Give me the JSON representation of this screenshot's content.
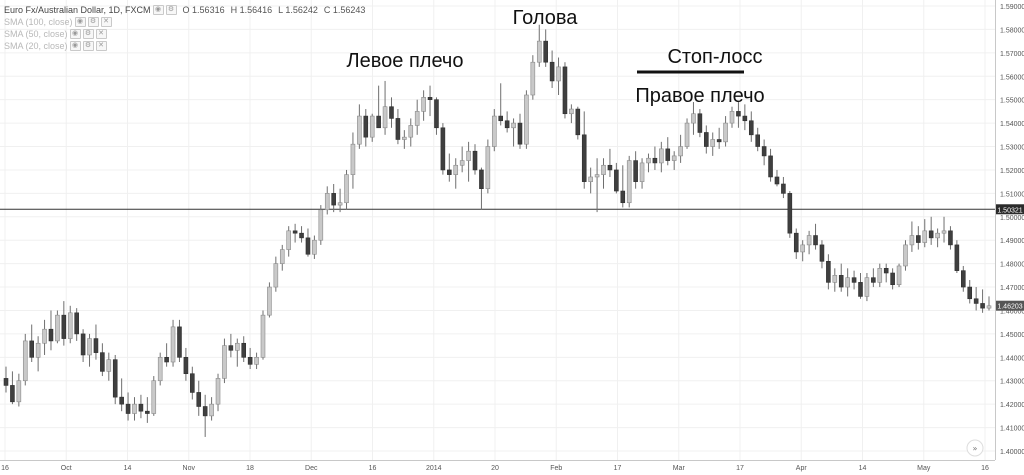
{
  "legend": {
    "symbol": "Euro Fx/Australian Dollar, 1D, FXCM",
    "open": "O 1.56316",
    "high": "H 1.56416",
    "low": "L 1.56242",
    "close": "C 1.56243",
    "indicators": [
      {
        "label": "SMA (100, close)"
      },
      {
        "label": "SMA (50, close)"
      },
      {
        "label": "SMA (20, close)"
      }
    ]
  },
  "chart_data": {
    "type": "candlestick",
    "ylim": [
      1.4,
      1.59
    ],
    "y_ticks": [
      "1.59000",
      "1.58000",
      "1.57000",
      "1.56000",
      "1.55000",
      "1.54000",
      "1.53000",
      "1.52000",
      "1.51000",
      "1.50000",
      "1.49000",
      "1.48000",
      "1.47000",
      "1.46000",
      "1.45000",
      "1.44000",
      "1.43000",
      "1.42000",
      "1.41000",
      "1.40000"
    ],
    "x_labels": [
      "16",
      "Oct",
      "14",
      "Nov",
      "18",
      "Dec",
      "16",
      "2014",
      "20",
      "Feb",
      "17",
      "Mar",
      "17",
      "Apr",
      "14",
      "May",
      "16"
    ],
    "support_line": {
      "value": 1.50321,
      "label": "1.50321"
    },
    "last_price": {
      "value": 1.46203,
      "label": "1.46203"
    },
    "annotations": {
      "head": "Голова",
      "left_shoulder": "Левое плечо",
      "right_shoulder": "Правое плечо",
      "stop_loss": "Стоп-лосс"
    },
    "candles": [
      [
        1.431,
        1.436,
        1.425,
        1.428
      ],
      [
        1.428,
        1.434,
        1.42,
        1.421
      ],
      [
        1.421,
        1.433,
        1.419,
        1.43
      ],
      [
        1.43,
        1.45,
        1.428,
        1.447
      ],
      [
        1.447,
        1.454,
        1.438,
        1.44
      ],
      [
        1.44,
        1.449,
        1.434,
        1.446
      ],
      [
        1.446,
        1.456,
        1.441,
        1.452
      ],
      [
        1.452,
        1.46,
        1.443,
        1.447
      ],
      [
        1.447,
        1.46,
        1.446,
        1.458
      ],
      [
        1.458,
        1.464,
        1.445,
        1.448
      ],
      [
        1.448,
        1.462,
        1.446,
        1.459
      ],
      [
        1.459,
        1.461,
        1.447,
        1.45
      ],
      [
        1.45,
        1.452,
        1.438,
        1.441
      ],
      [
        1.441,
        1.45,
        1.436,
        1.448
      ],
      [
        1.448,
        1.454,
        1.439,
        1.442
      ],
      [
        1.442,
        1.446,
        1.432,
        1.434
      ],
      [
        1.434,
        1.442,
        1.43,
        1.439
      ],
      [
        1.439,
        1.441,
        1.42,
        1.423
      ],
      [
        1.423,
        1.431,
        1.417,
        1.42
      ],
      [
        1.42,
        1.425,
        1.413,
        1.416
      ],
      [
        1.416,
        1.423,
        1.413,
        1.42
      ],
      [
        1.42,
        1.424,
        1.414,
        1.417
      ],
      [
        1.417,
        1.423,
        1.412,
        1.416
      ],
      [
        1.416,
        1.432,
        1.415,
        1.43
      ],
      [
        1.43,
        1.442,
        1.428,
        1.44
      ],
      [
        1.44,
        1.446,
        1.436,
        1.438
      ],
      [
        1.438,
        1.456,
        1.436,
        1.453
      ],
      [
        1.453,
        1.456,
        1.438,
        1.44
      ],
      [
        1.44,
        1.444,
        1.43,
        1.433
      ],
      [
        1.433,
        1.436,
        1.422,
        1.425
      ],
      [
        1.425,
        1.43,
        1.415,
        1.419
      ],
      [
        1.419,
        1.424,
        1.406,
        1.415
      ],
      [
        1.415,
        1.423,
        1.413,
        1.42
      ],
      [
        1.42,
        1.433,
        1.417,
        1.431
      ],
      [
        1.431,
        1.448,
        1.429,
        1.445
      ],
      [
        1.445,
        1.45,
        1.44,
        1.443
      ],
      [
        1.443,
        1.448,
        1.436,
        1.446
      ],
      [
        1.446,
        1.449,
        1.438,
        1.44
      ],
      [
        1.44,
        1.444,
        1.435,
        1.437
      ],
      [
        1.437,
        1.442,
        1.435,
        1.44
      ],
      [
        1.44,
        1.46,
        1.439,
        1.458
      ],
      [
        1.458,
        1.472,
        1.457,
        1.47
      ],
      [
        1.47,
        1.483,
        1.468,
        1.48
      ],
      [
        1.48,
        1.488,
        1.477,
        1.486
      ],
      [
        1.486,
        1.496,
        1.483,
        1.494
      ],
      [
        1.494,
        1.497,
        1.489,
        1.493
      ],
      [
        1.493,
        1.496,
        1.489,
        1.491
      ],
      [
        1.491,
        1.495,
        1.483,
        1.484
      ],
      [
        1.484,
        1.492,
        1.482,
        1.49
      ],
      [
        1.49,
        1.505,
        1.488,
        1.503
      ],
      [
        1.503,
        1.513,
        1.501,
        1.51
      ],
      [
        1.51,
        1.514,
        1.502,
        1.505
      ],
      [
        1.505,
        1.512,
        1.502,
        1.506
      ],
      [
        1.506,
        1.52,
        1.503,
        1.518
      ],
      [
        1.518,
        1.536,
        1.512,
        1.531
      ],
      [
        1.531,
        1.548,
        1.529,
        1.543
      ],
      [
        1.543,
        1.546,
        1.53,
        1.534
      ],
      [
        1.534,
        1.544,
        1.532,
        1.543
      ],
      [
        1.543,
        1.556,
        1.538,
        1.538
      ],
      [
        1.538,
        1.558,
        1.535,
        1.547
      ],
      [
        1.547,
        1.551,
        1.538,
        1.542
      ],
      [
        1.542,
        1.546,
        1.531,
        1.533
      ],
      [
        1.533,
        1.537,
        1.529,
        1.534
      ],
      [
        1.534,
        1.542,
        1.53,
        1.539
      ],
      [
        1.539,
        1.55,
        1.535,
        1.545
      ],
      [
        1.545,
        1.554,
        1.541,
        1.551
      ],
      [
        1.551,
        1.556,
        1.543,
        1.55
      ],
      [
        1.55,
        1.551,
        1.535,
        1.538
      ],
      [
        1.538,
        1.54,
        1.518,
        1.52
      ],
      [
        1.52,
        1.527,
        1.515,
        1.518
      ],
      [
        1.518,
        1.525,
        1.512,
        1.522
      ],
      [
        1.522,
        1.53,
        1.519,
        1.524
      ],
      [
        1.524,
        1.532,
        1.515,
        1.528
      ],
      [
        1.528,
        1.531,
        1.518,
        1.52
      ],
      [
        1.52,
        1.521,
        1.503,
        1.512
      ],
      [
        1.512,
        1.533,
        1.51,
        1.53
      ],
      [
        1.53,
        1.546,
        1.528,
        1.543
      ],
      [
        1.543,
        1.557,
        1.539,
        1.541
      ],
      [
        1.541,
        1.545,
        1.536,
        1.538
      ],
      [
        1.538,
        1.542,
        1.53,
        1.54
      ],
      [
        1.54,
        1.544,
        1.529,
        1.531
      ],
      [
        1.531,
        1.554,
        1.529,
        1.552
      ],
      [
        1.552,
        1.569,
        1.55,
        1.566
      ],
      [
        1.566,
        1.582,
        1.564,
        1.575
      ],
      [
        1.575,
        1.58,
        1.564,
        1.566
      ],
      [
        1.566,
        1.571,
        1.555,
        1.558
      ],
      [
        1.558,
        1.568,
        1.552,
        1.564
      ],
      [
        1.564,
        1.566,
        1.542,
        1.544
      ],
      [
        1.544,
        1.548,
        1.54,
        1.546
      ],
      [
        1.546,
        1.547,
        1.533,
        1.535
      ],
      [
        1.535,
        1.545,
        1.512,
        1.515
      ],
      [
        1.515,
        1.521,
        1.51,
        1.517
      ],
      [
        1.517,
        1.525,
        1.502,
        1.518
      ],
      [
        1.518,
        1.525,
        1.512,
        1.522
      ],
      [
        1.522,
        1.529,
        1.517,
        1.52
      ],
      [
        1.52,
        1.523,
        1.51,
        1.511
      ],
      [
        1.511,
        1.522,
        1.504,
        1.506
      ],
      [
        1.506,
        1.526,
        1.504,
        1.524
      ],
      [
        1.524,
        1.528,
        1.512,
        1.515
      ],
      [
        1.515,
        1.525,
        1.512,
        1.523
      ],
      [
        1.523,
        1.527,
        1.519,
        1.525
      ],
      [
        1.525,
        1.53,
        1.52,
        1.523
      ],
      [
        1.523,
        1.532,
        1.519,
        1.529
      ],
      [
        1.529,
        1.534,
        1.522,
        1.524
      ],
      [
        1.524,
        1.528,
        1.52,
        1.526
      ],
      [
        1.526,
        1.535,
        1.523,
        1.53
      ],
      [
        1.53,
        1.542,
        1.529,
        1.54
      ],
      [
        1.54,
        1.549,
        1.535,
        1.544
      ],
      [
        1.544,
        1.546,
        1.534,
        1.536
      ],
      [
        1.536,
        1.539,
        1.527,
        1.53
      ],
      [
        1.53,
        1.536,
        1.526,
        1.533
      ],
      [
        1.533,
        1.538,
        1.529,
        1.532
      ],
      [
        1.532,
        1.543,
        1.53,
        1.54
      ],
      [
        1.54,
        1.547,
        1.538,
        1.545
      ],
      [
        1.545,
        1.549,
        1.538,
        1.543
      ],
      [
        1.543,
        1.548,
        1.537,
        1.541
      ],
      [
        1.541,
        1.545,
        1.532,
        1.535
      ],
      [
        1.535,
        1.538,
        1.528,
        1.53
      ],
      [
        1.53,
        1.533,
        1.522,
        1.526
      ],
      [
        1.526,
        1.529,
        1.515,
        1.517
      ],
      [
        1.517,
        1.52,
        1.513,
        1.514
      ],
      [
        1.514,
        1.517,
        1.508,
        1.51
      ],
      [
        1.51,
        1.511,
        1.491,
        1.493
      ],
      [
        1.493,
        1.495,
        1.482,
        1.485
      ],
      [
        1.485,
        1.49,
        1.481,
        1.488
      ],
      [
        1.488,
        1.494,
        1.484,
        1.492
      ],
      [
        1.492,
        1.497,
        1.486,
        1.488
      ],
      [
        1.488,
        1.49,
        1.478,
        1.481
      ],
      [
        1.481,
        1.484,
        1.469,
        1.472
      ],
      [
        1.472,
        1.478,
        1.468,
        1.475
      ],
      [
        1.475,
        1.48,
        1.468,
        1.47
      ],
      [
        1.47,
        1.478,
        1.466,
        1.474
      ],
      [
        1.474,
        1.477,
        1.469,
        1.472
      ],
      [
        1.472,
        1.476,
        1.465,
        1.466
      ],
      [
        1.466,
        1.476,
        1.464,
        1.474
      ],
      [
        1.474,
        1.478,
        1.47,
        1.472
      ],
      [
        1.472,
        1.48,
        1.47,
        1.478
      ],
      [
        1.478,
        1.48,
        1.472,
        1.476
      ],
      [
        1.476,
        1.478,
        1.469,
        1.471
      ],
      [
        1.471,
        1.48,
        1.47,
        1.479
      ],
      [
        1.479,
        1.49,
        1.477,
        1.488
      ],
      [
        1.488,
        1.498,
        1.485,
        1.492
      ],
      [
        1.492,
        1.496,
        1.486,
        1.489
      ],
      [
        1.489,
        1.499,
        1.487,
        1.494
      ],
      [
        1.494,
        1.5,
        1.488,
        1.491
      ],
      [
        1.491,
        1.495,
        1.487,
        1.493
      ],
      [
        1.493,
        1.5,
        1.489,
        1.494
      ],
      [
        1.494,
        1.496,
        1.486,
        1.488
      ],
      [
        1.488,
        1.49,
        1.476,
        1.477
      ],
      [
        1.477,
        1.479,
        1.468,
        1.47
      ],
      [
        1.47,
        1.473,
        1.463,
        1.465
      ],
      [
        1.465,
        1.47,
        1.46,
        1.463
      ],
      [
        1.463,
        1.469,
        1.459,
        1.461
      ],
      [
        1.461,
        1.466,
        1.46,
        1.462
      ]
    ]
  }
}
